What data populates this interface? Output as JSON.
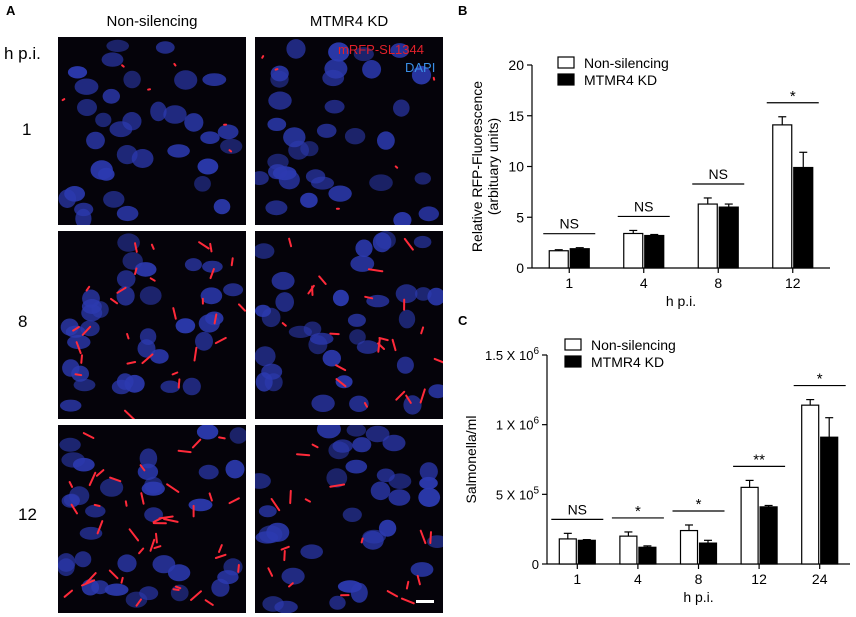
{
  "panel_a": {
    "letter": "A",
    "col_heads": [
      "Non-silencing",
      "MTMR4 KD"
    ],
    "row_header": "h p.i.",
    "rows": [
      "1",
      "8",
      "12"
    ],
    "channel_labels": [
      {
        "text": "mRFP-SL1344",
        "color": "#e0202a"
      },
      {
        "text": "DAPI",
        "color": "#3a8ee6"
      }
    ],
    "colors": {
      "nucleus": "#2c3ab0",
      "bacteria": "#ff2a3a",
      "background": "#05030a"
    }
  },
  "chart_data": [
    {
      "type": "bar",
      "letter": "B",
      "categories": [
        "1",
        "4",
        "8",
        "12"
      ],
      "series": [
        {
          "name": "Non-silencing",
          "values": [
            1.7,
            3.4,
            6.3,
            14.1
          ],
          "errors": [
            0.1,
            0.3,
            0.6,
            0.8
          ],
          "fill": "#ffffff"
        },
        {
          "name": "MTMR4 KD",
          "values": [
            1.9,
            3.2,
            6.0,
            9.9
          ],
          "errors": [
            0.1,
            0.1,
            0.3,
            1.5
          ],
          "fill": "#000000"
        }
      ],
      "xlabel": "h p.i.",
      "ylabel_lines": [
        "Relative RFP-Fluorescence",
        "(arbituary units)"
      ],
      "ylim": [
        0,
        20
      ],
      "yticks": [
        "0",
        "5",
        "10",
        "15",
        "20"
      ],
      "significance": [
        "NS",
        "NS",
        "NS",
        "*"
      ],
      "legend": "top-left"
    },
    {
      "type": "bar",
      "letter": "C",
      "categories": [
        "1",
        "4",
        "8",
        "12",
        "24"
      ],
      "series": [
        {
          "name": "Non-silencing",
          "values": [
            180000,
            200000,
            240000,
            550000,
            1140000
          ],
          "errors": [
            40000,
            30000,
            40000,
            50000,
            40000
          ],
          "fill": "#ffffff"
        },
        {
          "name": "MTMR4 KD",
          "values": [
            170000,
            120000,
            150000,
            410000,
            910000
          ],
          "errors": [
            5000,
            10000,
            20000,
            10000,
            140000
          ],
          "fill": "#000000"
        }
      ],
      "xlabel": "h p.i.",
      "ylabel": "Salmonella/ml",
      "ylim": [
        0,
        1500000
      ],
      "yticks": [
        {
          "base": "0",
          "exp": ""
        },
        {
          "base": "5 X 10",
          "exp": "5"
        },
        {
          "base": "1 X 10",
          "exp": "6"
        },
        {
          "base": "1.5 X 10",
          "exp": "6"
        }
      ],
      "significance": [
        "NS",
        "*",
        "*",
        "**",
        "*"
      ],
      "legend": "top-left"
    }
  ]
}
